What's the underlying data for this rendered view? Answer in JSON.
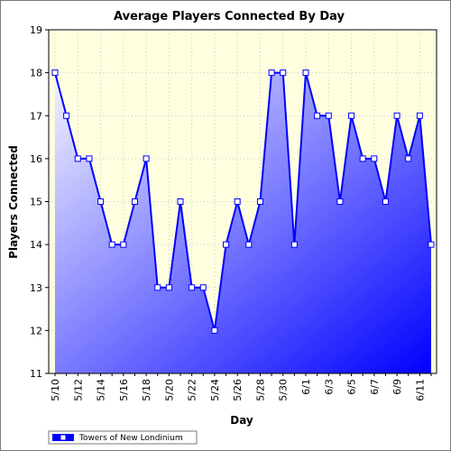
{
  "chart_data": {
    "type": "area",
    "title": "Average Players Connected By Day",
    "xlabel": "Day",
    "ylabel": "Players Connected",
    "ylim": [
      11,
      19
    ],
    "yticks": [
      11,
      12,
      13,
      14,
      15,
      16,
      17,
      18,
      19
    ],
    "x": [
      "5/10",
      "5/11",
      "5/12",
      "5/13",
      "5/14",
      "5/15",
      "5/16",
      "5/17",
      "5/18",
      "5/19",
      "5/20",
      "5/21",
      "5/22",
      "5/23",
      "5/24",
      "5/25",
      "5/26",
      "5/27",
      "5/28",
      "5/29",
      "5/30",
      "5/31",
      "6/1",
      "6/2",
      "6/3",
      "6/4",
      "6/5",
      "6/6",
      "6/7",
      "6/8",
      "6/9",
      "6/10",
      "6/11",
      "6/12"
    ],
    "xtick_labels": [
      "5/10",
      "5/12",
      "5/14",
      "5/16",
      "5/18",
      "5/20",
      "5/22",
      "5/24",
      "5/26",
      "5/28",
      "5/30",
      "6/1",
      "6/3",
      "6/5",
      "6/7",
      "6/9",
      "6/11"
    ],
    "series": [
      {
        "name": "Towers of New Londinium",
        "values": [
          18,
          17,
          16,
          16,
          15,
          14,
          14,
          15,
          16,
          13,
          13,
          15,
          13,
          13,
          12,
          14,
          15,
          14,
          15,
          18,
          18,
          14,
          18,
          17,
          17,
          15,
          17,
          16,
          16,
          15,
          17,
          16,
          17,
          14
        ]
      }
    ],
    "grid": true,
    "legend": "bottom-left",
    "colors": {
      "plot_bg": "#ffffe0",
      "line": "#0000ff",
      "fill_light": "#f4f4ff",
      "fill_dark": "#0000ff",
      "grid": "#c8c8c8",
      "marker_fill": "#ffffff"
    }
  }
}
